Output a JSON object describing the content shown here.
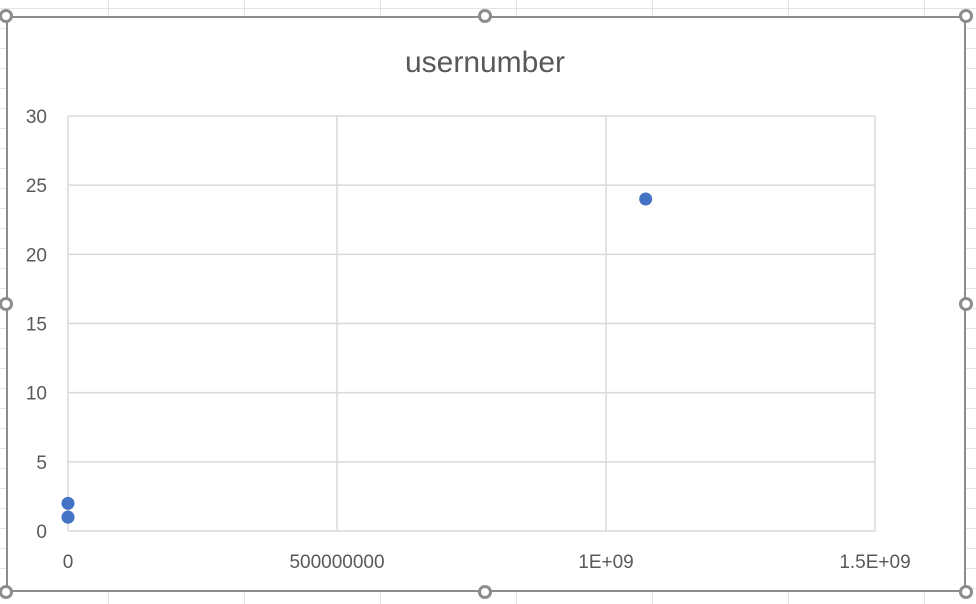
{
  "chart_data": {
    "type": "scatter",
    "title": "usernumber",
    "xlabel": "",
    "ylabel": "",
    "xlim": [
      0,
      1500000000
    ],
    "ylim": [
      0,
      30
    ],
    "x_ticks": [
      0,
      500000000,
      1000000000,
      1500000000
    ],
    "x_tick_labels": [
      "0",
      "500000000",
      "1E+09",
      "1.5E+09"
    ],
    "y_ticks": [
      0,
      5,
      10,
      15,
      20,
      25,
      30
    ],
    "y_tick_labels": [
      "0",
      "5",
      "10",
      "15",
      "20",
      "25",
      "30"
    ],
    "grid": true,
    "legend": "none",
    "series": [
      {
        "color": "#4472C4",
        "points": [
          {
            "x": 0,
            "y": 1
          },
          {
            "x": 0,
            "y": 1
          },
          {
            "x": 0,
            "y": 2
          },
          {
            "x": 1073741824,
            "y": 24
          }
        ]
      }
    ]
  }
}
